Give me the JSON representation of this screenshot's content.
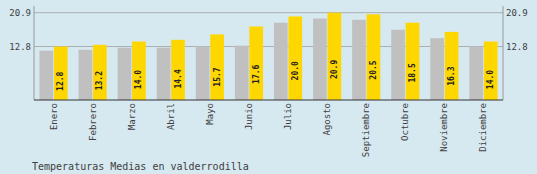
{
  "chart_data": {
    "type": "bar",
    "title": "Temperaturas Medias en valderrodilla",
    "categories": [
      "Enero",
      "Febrero",
      "Marzo",
      "Abril",
      "Mayo",
      "Junio",
      "Julio",
      "Agosto",
      "Septiembre",
      "Octubre",
      "Noviembre",
      "Diciembre"
    ],
    "series": [
      {
        "color": "#C0C0C0",
        "values": [
          11.8,
          12.0,
          12.5,
          12.5,
          12.8,
          13.0,
          18.5,
          19.5,
          19.2,
          16.8,
          14.8,
          12.8
        ]
      },
      {
        "color": "#FFD700",
        "values": [
          12.8,
          13.2,
          14.0,
          14.4,
          15.7,
          17.6,
          20.0,
          20.9,
          20.5,
          18.5,
          16.3,
          14.0
        ],
        "data_labels": true,
        "value_labels": [
          "12.8",
          "13.2",
          "14.0",
          "14.4",
          "15.7",
          "17.6",
          "20.0",
          "20.9",
          "20.5",
          "18.5",
          "16.3",
          "14.0"
        ]
      }
    ],
    "ylim": [
      0,
      22.5
    ],
    "yticks": [
      12.8,
      20.9
    ],
    "y2lim": [
      0,
      22.5
    ],
    "y2ticks": [
      12.8,
      20.9
    ],
    "grid": true
  }
}
